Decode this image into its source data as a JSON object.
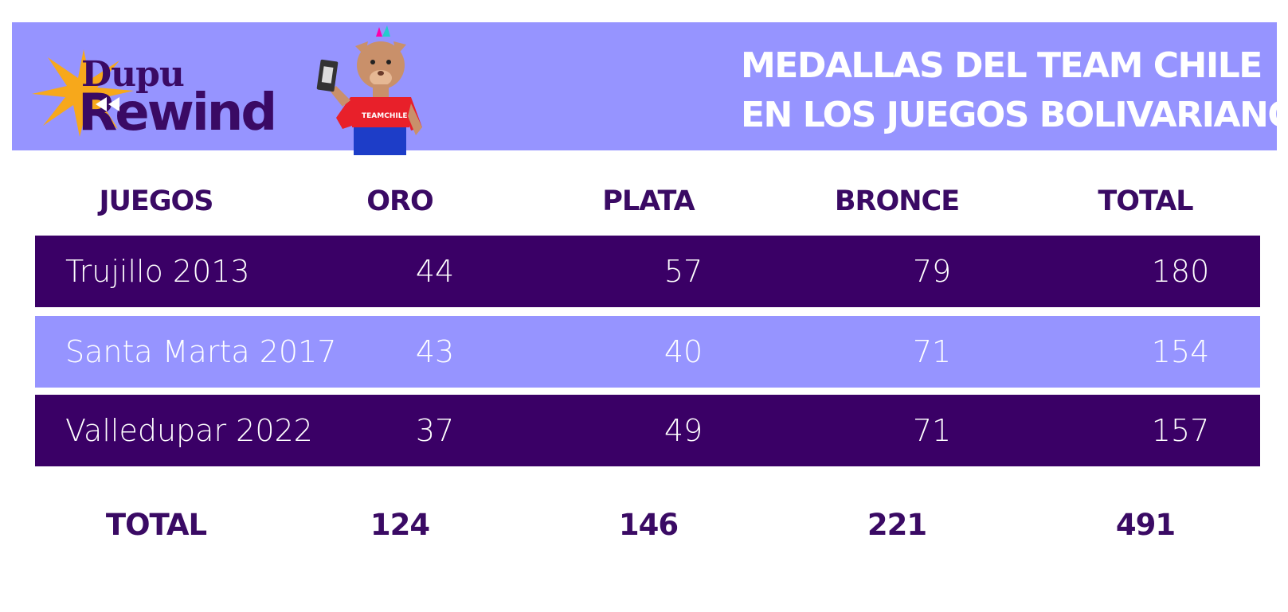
{
  "brand": {
    "line1": "Dupu",
    "line2": "Rewind",
    "shirt_text": "TEAMCHILE"
  },
  "title": {
    "line1": "MEDALLAS DEL TEAM CHILE",
    "line2": "EN LOS JUEGOS BOLIVARIANOS"
  },
  "table": {
    "headers": [
      "JUEGOS",
      "ORO",
      "PLATA",
      "BRONCE",
      "TOTAL"
    ],
    "rows": [
      {
        "juegos": "Trujillo 2013",
        "oro": "44",
        "plata": "57",
        "bronce": "79",
        "total": "180"
      },
      {
        "juegos": "Santa Marta 2017",
        "oro": "43",
        "plata": "40",
        "bronce": "71",
        "total": "154"
      },
      {
        "juegos": "Valledupar 2022",
        "oro": "37",
        "plata": "49",
        "bronce": "71",
        "total": "157"
      }
    ],
    "totals": {
      "label": "TOTAL",
      "oro": "124",
      "plata": "146",
      "bronce": "221",
      "total": "491"
    }
  },
  "colors": {
    "banner": "#9694ff",
    "dark_row": "#3a0066",
    "light_row": "#9694ff",
    "text_dark": "#3a0a64",
    "star": "#f7a81b",
    "shirt": "#e8202a"
  },
  "icons": [
    "star-burst-icon",
    "rewind-icon",
    "mascot-illustration",
    "vhs-tape-icon"
  ]
}
